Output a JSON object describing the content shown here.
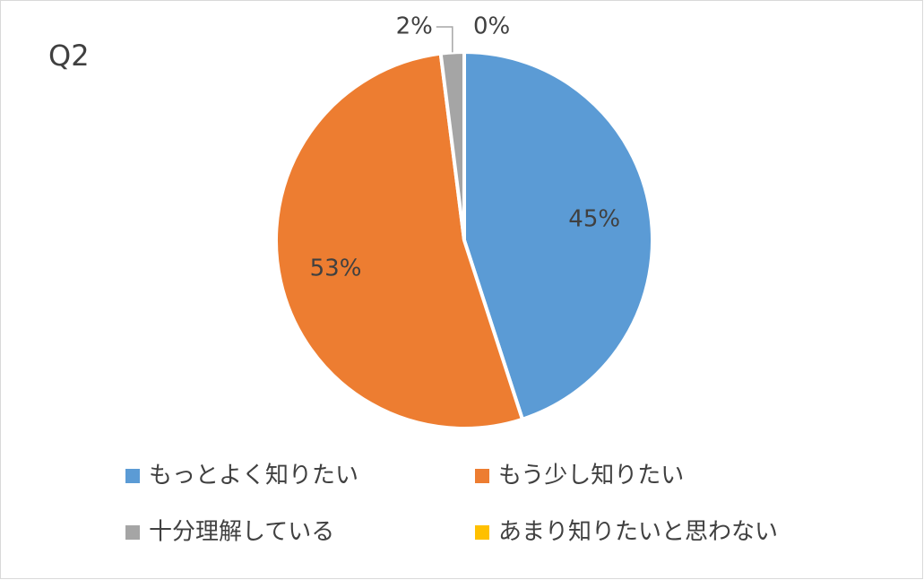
{
  "chart_data": {
    "type": "pie",
    "title": "Q2",
    "categories": [
      "もっとよく知りたい",
      "もう少し知りたい",
      "十分理解している",
      "あまり知りたいと思わない"
    ],
    "values": [
      45,
      53,
      2,
      0
    ],
    "value_labels": [
      "45%",
      "53%",
      "2%",
      "0%"
    ],
    "colors": [
      "#5b9bd5",
      "#ed7d31",
      "#a5a5a5",
      "#ffc000"
    ],
    "legend": "bottom"
  }
}
